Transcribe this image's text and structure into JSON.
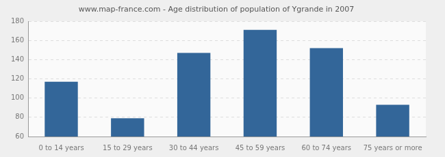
{
  "chart_data": {
    "type": "bar",
    "title": "www.map-france.com - Age distribution of population of Ygrande in 2007",
    "categories": [
      "0 to 14 years",
      "15 to 29 years",
      "30 to 44 years",
      "45 to 59 years",
      "60 to 74 years",
      "75 years or more"
    ],
    "values": [
      117,
      79,
      147,
      171,
      152,
      93
    ],
    "color": "#336699",
    "ylim": [
      60,
      180
    ],
    "yticks": [
      60,
      80,
      100,
      120,
      140,
      160,
      180
    ],
    "grid": true
  }
}
